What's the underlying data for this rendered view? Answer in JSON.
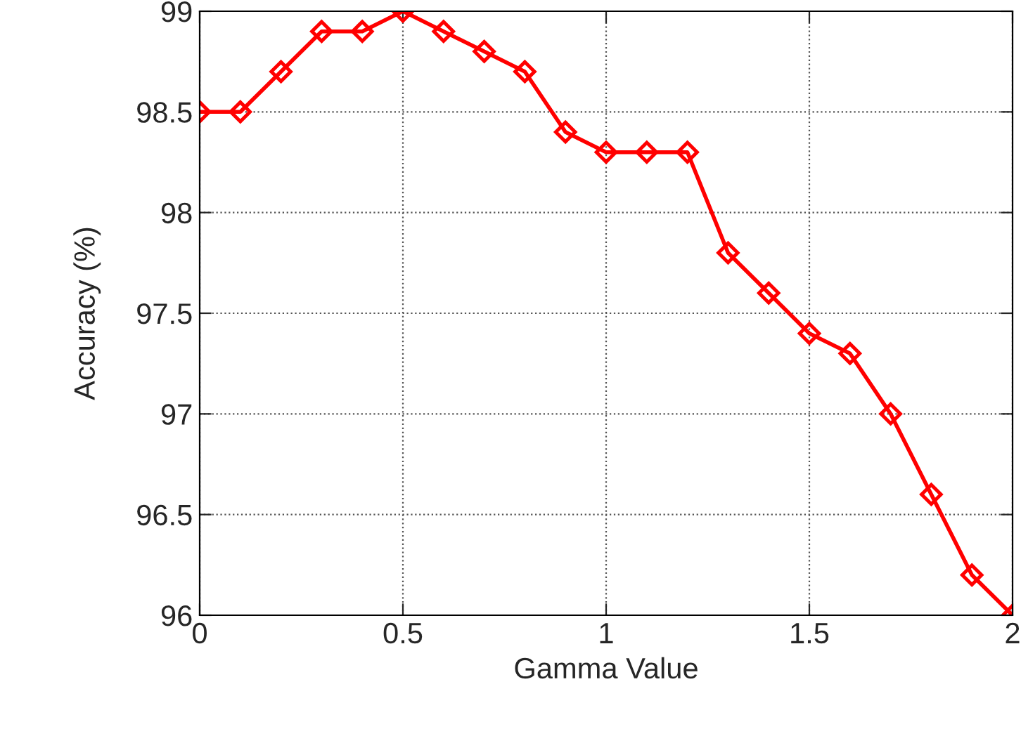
{
  "chart_data": {
    "type": "line",
    "xlabel": "Gamma Value",
    "ylabel": "Accuracy (%)",
    "x": [
      0,
      0.1,
      0.2,
      0.3,
      0.4,
      0.5,
      0.6,
      0.7,
      0.8,
      0.9,
      1,
      1.1,
      1.2,
      1.3,
      1.4,
      1.5,
      1.6,
      1.7,
      1.8,
      1.9,
      2
    ],
    "series": [
      {
        "color": "#ff0000",
        "values": [
          98.5,
          98.5,
          98.7,
          98.9,
          98.9,
          99.0,
          98.9,
          98.8,
          98.7,
          98.4,
          98.3,
          98.3,
          98.3,
          97.8,
          97.6,
          97.4,
          97.3,
          97.0,
          96.6,
          96.2,
          96.0
        ]
      }
    ],
    "xlim": [
      0,
      2
    ],
    "xticks": [
      0,
      0.5,
      1,
      1.5,
      2
    ],
    "ylim": [
      96,
      99
    ],
    "yticks": [
      96,
      96.5,
      97,
      97.5,
      98,
      98.5,
      99
    ],
    "grid": true,
    "marker": "diamond",
    "line_style": "solid",
    "legend": false
  }
}
